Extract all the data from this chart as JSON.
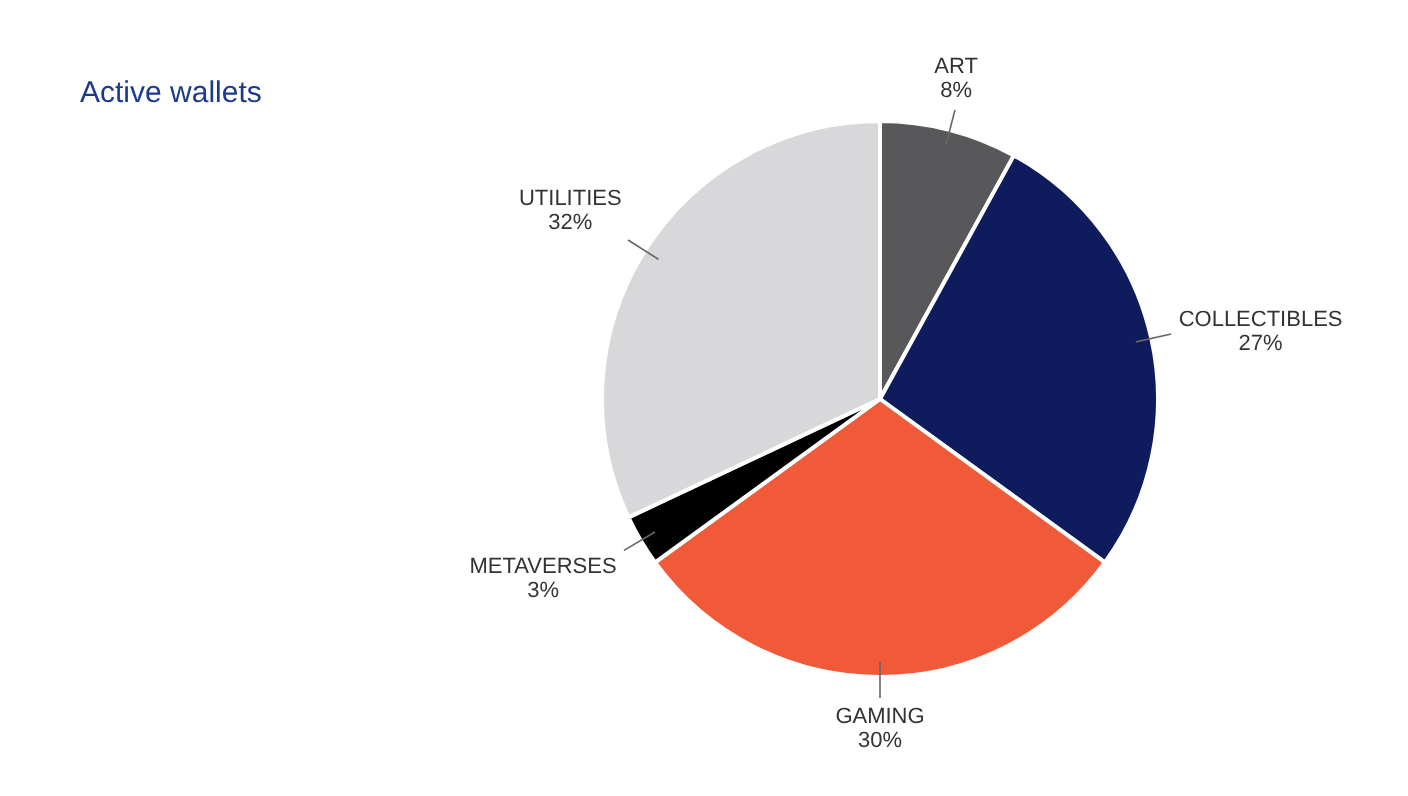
{
  "chart_data": {
    "type": "pie",
    "title": "Active wallets",
    "categories": [
      "ART",
      "COLLECTIBLES",
      "GAMING",
      "METAVERSES",
      "UTILITIES"
    ],
    "values": [
      8,
      27,
      30,
      3,
      32
    ],
    "value_labels": [
      "8%",
      "27%",
      "30%",
      "3%",
      "32%"
    ],
    "colors": [
      "#58585a",
      "#0e1b5c",
      "#f15a38",
      "#000000",
      "#d8d8da"
    ],
    "legend": false
  }
}
